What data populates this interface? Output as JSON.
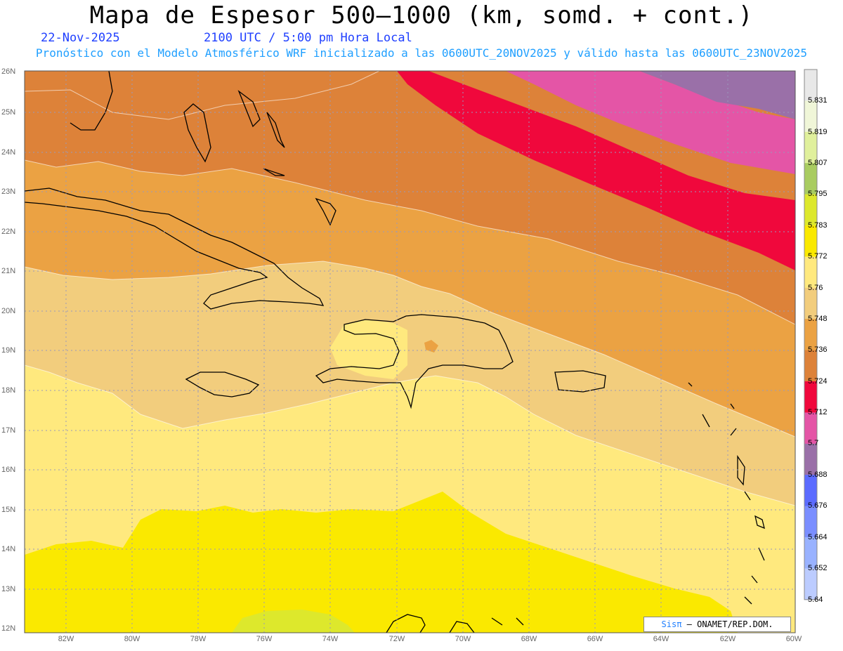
{
  "header": {
    "title": "Mapa de Espesor 500—1000 (km, somd. + cont.)",
    "date": "22-Nov-2025",
    "time": "2100 UTC / 5:00 pm Hora Local",
    "forecast": "Pronóstico con el Modelo Atmosférico WRF inicializado a las 0600UTC_20NOV2025 y válido hasta las  0600UTC_23NOV2025"
  },
  "axes": {
    "lat_labels": [
      "26N",
      "25N",
      "24N",
      "23N",
      "22N",
      "21N",
      "20N",
      "19N",
      "18N",
      "17N",
      "16N",
      "15N",
      "14N",
      "13N",
      "12N"
    ],
    "lon_labels": [
      "82W",
      "80W",
      "78W",
      "76W",
      "74W",
      "72W",
      "70W",
      "68W",
      "66W",
      "64W",
      "62W",
      "60W"
    ]
  },
  "colorbar": {
    "labels": [
      "5.831",
      "5.819",
      "5.807",
      "5.795",
      "5.783",
      "5.772",
      "5.76",
      "5.748",
      "5.736",
      "5.724",
      "5.712",
      "5.7",
      "5.688",
      "5.676",
      "5.664",
      "5.652",
      "5.64"
    ],
    "colors": [
      "#e8e8e8",
      "#f0f6d8",
      "#e0f09c",
      "#a9cc60",
      "#dde82c",
      "#fae900",
      "#ffe97e",
      "#f2cd7d",
      "#eba243",
      "#dd8239",
      "#f0083c",
      "#e455a6",
      "#9a70a8",
      "#5b6bff",
      "#7a8eff",
      "#99b2ff",
      "#bcccff"
    ]
  },
  "credit": {
    "sis": "Sisπ",
    "org": " – ONAMET/REP.DOM."
  }
}
